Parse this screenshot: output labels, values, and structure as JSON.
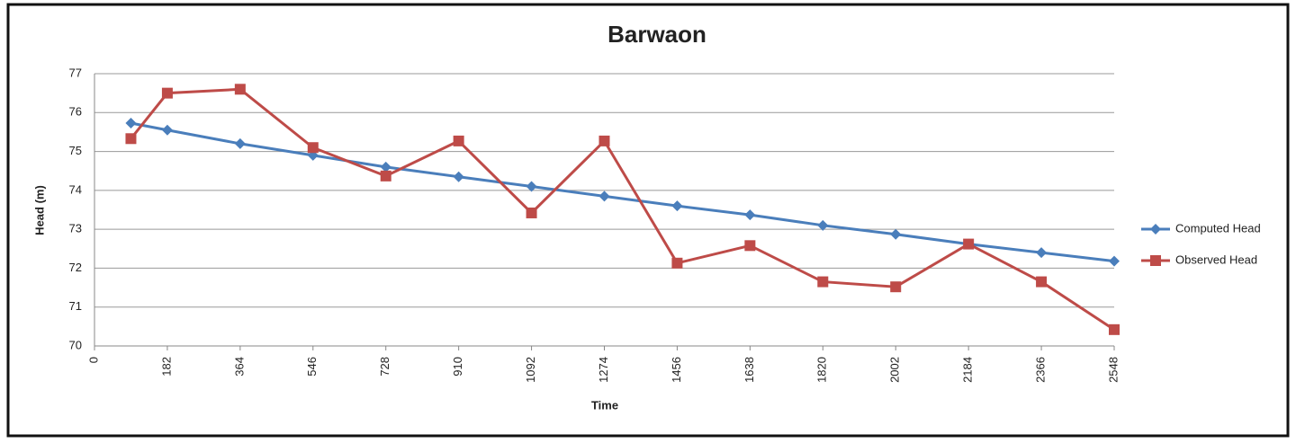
{
  "chart_data": {
    "type": "line",
    "title": "Barwaon",
    "x_label": "Time",
    "y_label": "Head (m)",
    "x": [
      91,
      182,
      364,
      546,
      728,
      910,
      1092,
      1274,
      1456,
      1638,
      1820,
      2002,
      2184,
      2366,
      2548
    ],
    "series": [
      {
        "name": "Computed Head",
        "color": "#4a7ebb",
        "marker": "diamond",
        "values": [
          75.73,
          75.55,
          75.2,
          74.9,
          74.6,
          74.35,
          74.1,
          73.85,
          73.6,
          73.37,
          73.1,
          72.87,
          72.62,
          72.4,
          72.18
        ]
      },
      {
        "name": "Observed Head",
        "color": "#be4b48",
        "marker": "square",
        "values": [
          75.33,
          76.5,
          76.6,
          75.1,
          74.37,
          75.27,
          73.42,
          75.27,
          72.13,
          72.58,
          71.65,
          71.52,
          72.62,
          71.65,
          70.42
        ]
      }
    ],
    "xlim": [
      0,
      2548
    ],
    "xticks": [
      0,
      182,
      364,
      546,
      728,
      910,
      1092,
      1274,
      1456,
      1638,
      1820,
      2002,
      2184,
      2366,
      2548
    ],
    "ylim": [
      70,
      77
    ],
    "yticks": [
      70,
      71,
      72,
      73,
      74,
      75,
      76,
      77
    ],
    "grid": true,
    "legend": "right"
  }
}
